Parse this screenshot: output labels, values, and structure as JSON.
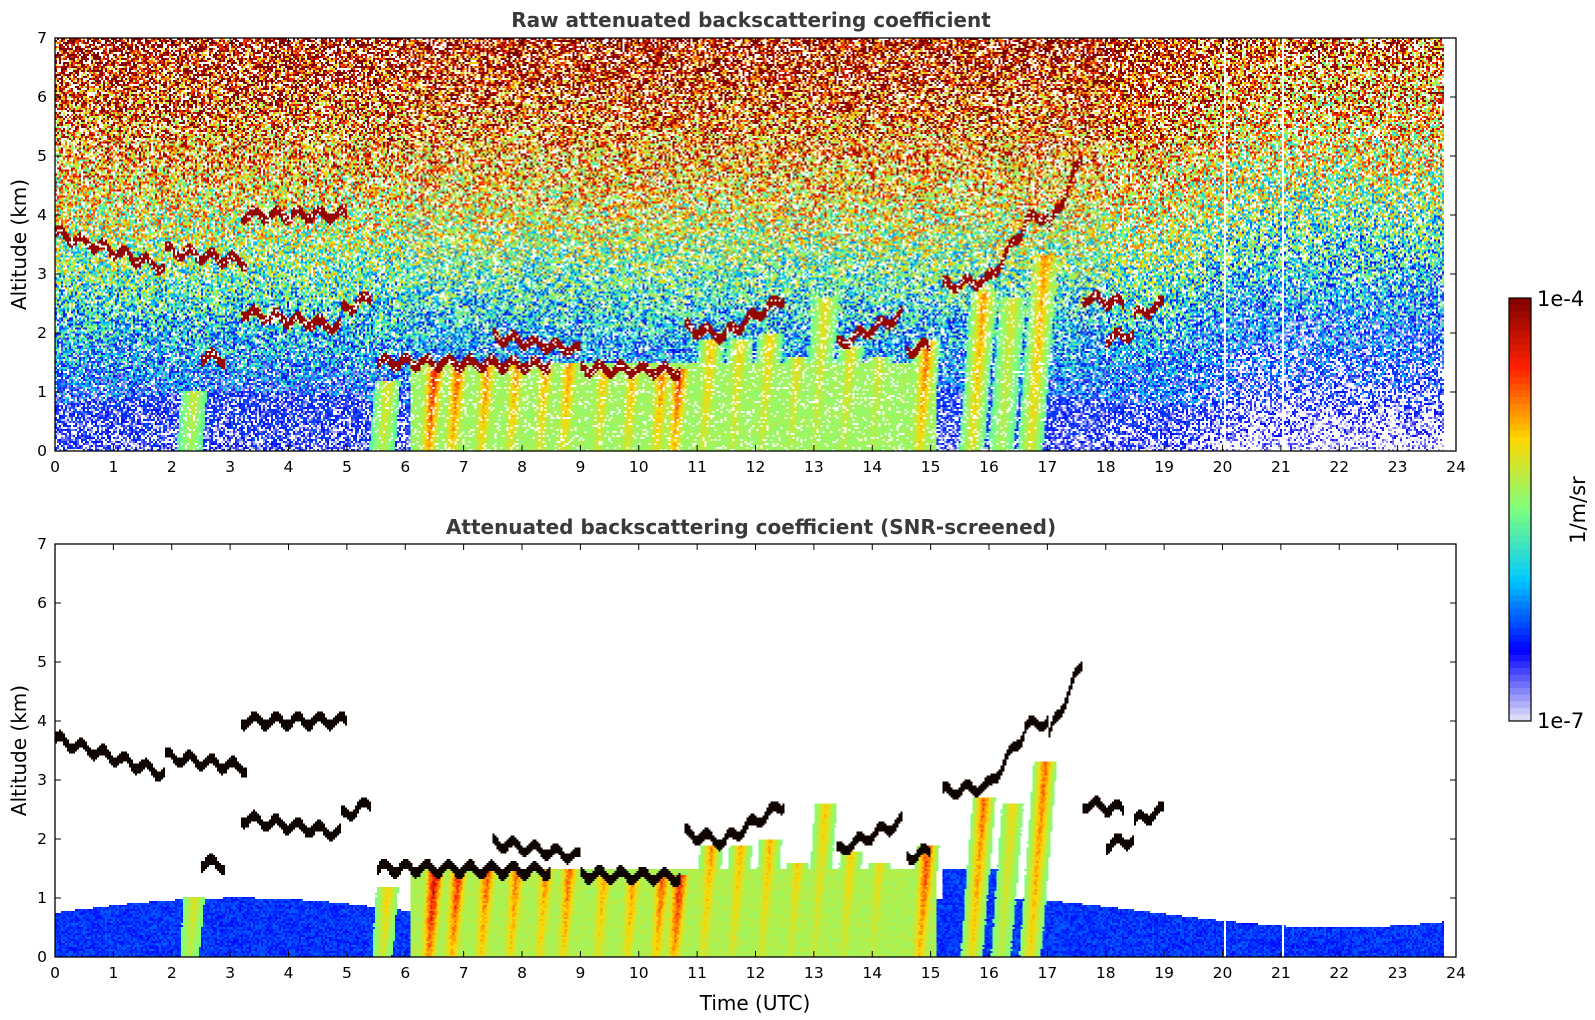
{
  "chart_data": [
    {
      "type": "heatmap",
      "title": "Raw attenuated backscattering coefficient",
      "xlabel": "",
      "ylabel": "Altitude (km)",
      "xlim": [
        0,
        24
      ],
      "ylim": [
        0,
        7
      ],
      "x_ticks": [
        "0",
        "1",
        "2",
        "3",
        "4",
        "5",
        "6",
        "7",
        "8",
        "9",
        "10",
        "11",
        "12",
        "13",
        "14",
        "15",
        "16",
        "17",
        "18",
        "19",
        "20",
        "21",
        "22",
        "23",
        "24"
      ],
      "y_ticks": [
        "0",
        "1",
        "2",
        "3",
        "4",
        "5",
        "6",
        "7"
      ],
      "data_extent_x": [
        0,
        23.8
      ],
      "screened": false
    },
    {
      "type": "heatmap",
      "title": "Attenuated backscattering coefficient (SNR-screened)",
      "xlabel": "Time (UTC)",
      "ylabel": "Altitude (km)",
      "xlim": [
        0,
        24
      ],
      "ylim": [
        0,
        7
      ],
      "x_ticks": [
        "0",
        "1",
        "2",
        "3",
        "4",
        "5",
        "6",
        "7",
        "8",
        "9",
        "10",
        "11",
        "12",
        "13",
        "14",
        "15",
        "16",
        "17",
        "18",
        "19",
        "20",
        "21",
        "22",
        "23",
        "24"
      ],
      "y_ticks": [
        "0",
        "1",
        "2",
        "3",
        "4",
        "5",
        "6",
        "7"
      ],
      "data_extent_x": [
        0,
        23.8
      ],
      "screened": true
    }
  ],
  "colorbar": {
    "label": "1/m/sr",
    "max_label": "1e-4",
    "min_label": "1e-7",
    "scale": "log",
    "range": [
      1e-07,
      0.0001
    ],
    "colormap": [
      "#e6e6f7",
      "#0000ff",
      "#00c8ff",
      "#7fff7f",
      "#ffd700",
      "#ff2200",
      "#7f0000"
    ]
  },
  "features": {
    "cloud_layers": [
      {
        "t": [
          0.0,
          1.9
        ],
        "alt": [
          3.7,
          3.1
        ]
      },
      {
        "t": [
          1.9,
          3.3
        ],
        "alt": [
          3.4,
          3.2
        ]
      },
      {
        "t": [
          3.2,
          5.0
        ],
        "alt": [
          4.0,
          4.0
        ]
      },
      {
        "t": [
          3.2,
          4.9
        ],
        "alt": [
          2.35,
          2.1
        ]
      },
      {
        "t": [
          4.9,
          5.4
        ],
        "alt": [
          2.4,
          2.6
        ]
      },
      {
        "t": [
          2.5,
          2.9
        ],
        "alt": [
          1.6,
          1.55
        ]
      },
      {
        "t": [
          5.5,
          6.2
        ],
        "alt": [
          1.5,
          1.5
        ]
      },
      {
        "t": [
          6.2,
          8.5
        ],
        "alt": [
          1.5,
          1.45
        ]
      },
      {
        "t": [
          7.5,
          9.0
        ],
        "alt": [
          1.95,
          1.7
        ]
      },
      {
        "t": [
          9.0,
          10.7
        ],
        "alt": [
          1.4,
          1.35
        ]
      },
      {
        "t": [
          10.8,
          11.5
        ],
        "alt": [
          2.1,
          1.95
        ]
      },
      {
        "t": [
          11.5,
          12.5
        ],
        "alt": [
          2.0,
          2.6
        ]
      },
      {
        "t": [
          13.4,
          14.5
        ],
        "alt": [
          1.8,
          2.3
        ]
      },
      {
        "t": [
          14.6,
          15.0
        ],
        "alt": [
          1.7,
          1.8
        ]
      },
      {
        "t": [
          15.2,
          16.0
        ],
        "alt": [
          2.8,
          2.9
        ]
      },
      {
        "t": [
          16.0,
          16.6
        ],
        "alt": [
          2.9,
          3.8
        ]
      },
      {
        "t": [
          16.6,
          17.0
        ],
        "alt": [
          3.9,
          4.0
        ]
      },
      {
        "t": [
          17.0,
          17.6
        ],
        "alt": [
          3.7,
          5.0
        ]
      },
      {
        "t": [
          17.6,
          18.3
        ],
        "alt": [
          2.6,
          2.5
        ]
      },
      {
        "t": [
          18.0,
          18.5
        ],
        "alt": [
          1.9,
          2.0
        ]
      },
      {
        "t": [
          18.5,
          19.0
        ],
        "alt": [
          2.3,
          2.5
        ]
      }
    ],
    "boundary_layer_plumes": [
      {
        "t": 2.3,
        "top": 1.0,
        "strength": 0.35
      },
      {
        "t": 5.6,
        "top": 1.2,
        "strength": 0.45
      },
      {
        "t": 6.4,
        "top": 1.45,
        "strength": 0.95
      },
      {
        "t": 6.8,
        "top": 1.45,
        "strength": 0.8
      },
      {
        "t": 7.3,
        "top": 1.45,
        "strength": 0.7
      },
      {
        "t": 7.8,
        "top": 1.5,
        "strength": 0.65
      },
      {
        "t": 8.3,
        "top": 1.5,
        "strength": 0.6
      },
      {
        "t": 8.7,
        "top": 1.5,
        "strength": 0.65
      },
      {
        "t": 9.3,
        "top": 1.4,
        "strength": 0.55
      },
      {
        "t": 9.8,
        "top": 1.4,
        "strength": 0.6
      },
      {
        "t": 10.3,
        "top": 1.4,
        "strength": 0.7
      },
      {
        "t": 10.6,
        "top": 1.4,
        "strength": 0.85
      },
      {
        "t": 11.1,
        "top": 1.9,
        "strength": 0.55
      },
      {
        "t": 11.6,
        "top": 1.9,
        "strength": 0.5
      },
      {
        "t": 12.1,
        "top": 2.0,
        "strength": 0.5
      },
      {
        "t": 12.6,
        "top": 1.6,
        "strength": 0.45
      },
      {
        "t": 13.0,
        "top": 2.6,
        "strength": 0.45
      },
      {
        "t": 13.5,
        "top": 1.8,
        "strength": 0.45
      },
      {
        "t": 14.0,
        "top": 1.6,
        "strength": 0.4
      },
      {
        "t": 14.8,
        "top": 1.9,
        "strength": 0.75
      },
      {
        "t": 15.7,
        "top": 2.7,
        "strength": 0.65
      },
      {
        "t": 16.2,
        "top": 2.6,
        "strength": 0.4
      },
      {
        "t": 16.7,
        "top": 3.3,
        "strength": 0.65
      }
    ],
    "gaps": [
      20.05,
      21.05
    ]
  }
}
